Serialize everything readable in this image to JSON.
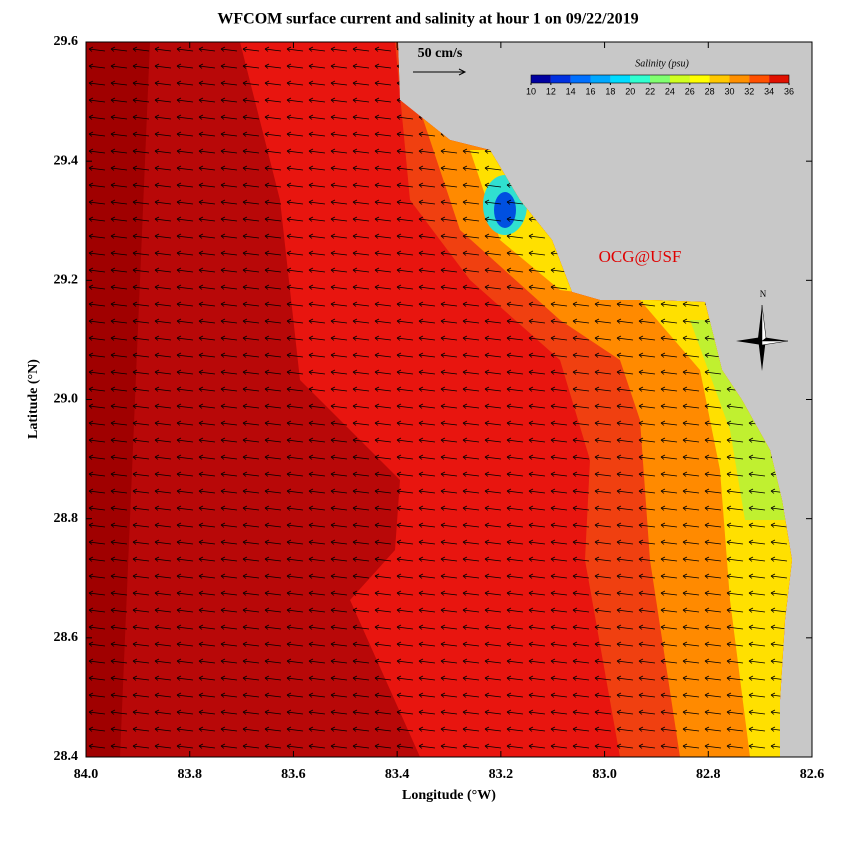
{
  "chart_data": {
    "type": "contour",
    "title": "WFCOM surface current and salinity at hour 1 on 09/22/2019",
    "x_label": "Longitude (°W)",
    "y_label": "Latitude (°N)",
    "xlim": [
      84.0,
      82.6
    ],
    "xticks": [
      {
        "value": 84,
        "label": "84.0"
      },
      83.8,
      83.6,
      83.4,
      83.2,
      {
        "value": 83,
        "label": "83.0"
      },
      82.8,
      82.6
    ],
    "ylim": [
      28.4,
      29.6
    ],
    "yticks": [
      28.4,
      28.6,
      28.8,
      {
        "value": 29,
        "label": "29.0"
      },
      29.2,
      29.4,
      29.6
    ],
    "colorbar": {
      "title": "Salinity (psu)",
      "lim": [
        10,
        36
      ],
      "ticks": [
        10,
        12,
        14,
        16,
        18,
        20,
        22,
        24,
        26,
        28,
        30,
        32,
        34,
        36
      ],
      "colors": [
        "#0000a0",
        "#0030e0",
        "#0070ff",
        "#00a8ff",
        "#00dcff",
        "#30ffd0",
        "#80ff70",
        "#d0ff20",
        "#ffff00",
        "#ffc800",
        "#ff9000",
        "#ff5000",
        "#e01000"
      ]
    },
    "reference_vector": "50 cm/s",
    "credit": "OCG@USF",
    "compass": "N"
  }
}
